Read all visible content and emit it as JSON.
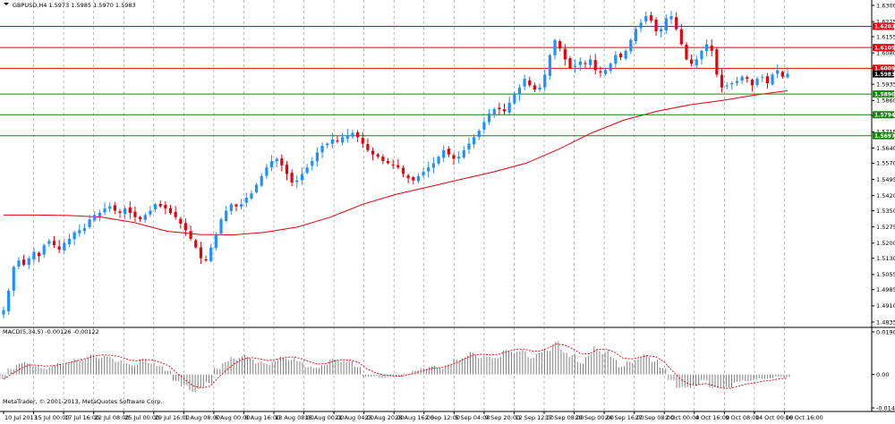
{
  "header": {
    "symbol_line": "GBPUSD,H4  1.5973 1.5985 1.5970 1.5983",
    "macd_line": "MACD(5,34,5) -0.00126 -0.00122",
    "copyright": "MetaTrader, © 2001-2013, MetaQuotes Software Corp."
  },
  "colors": {
    "background": "#ffffff",
    "bull_candle": "#1e90ff",
    "bear_candle": "#e8000b",
    "ma_line": "#e8000b",
    "resistance_line": "#e8000b",
    "support_line": "#138808",
    "macd_bars": "#7f7f7f",
    "macd_signal": "#e8000b",
    "grid": "#9a9a9a"
  },
  "chart_data": [
    {
      "type": "candlestick",
      "symbol": "GBPUSD",
      "timeframe": "H4",
      "ohlc": {
        "open": 1.5973,
        "high": 1.5985,
        "low": 1.597,
        "close": 1.5983
      },
      "current_price_label": "1.5983",
      "ylim": [
        1.4835,
        1.63
      ],
      "y_tick_labels": [
        "1.6300",
        "1.6225",
        "1.6155",
        "1.6080",
        "1.6010",
        "1.5935",
        "1.5860",
        "1.5790",
        "1.5715",
        "1.5640",
        "1.5570",
        "1.5495",
        "1.5420",
        "1.5350",
        "1.5275",
        "1.5200",
        "1.5130",
        "1.5055",
        "1.4985",
        "1.4910",
        "1.4835"
      ],
      "x_tick_labels": [
        "10 Jul 2013",
        "15 Jul 00:00",
        "17 Jul 16:00",
        "22 Jul 08:00",
        "25 Jul 00:00",
        "29 Jul 16:00",
        "1 Aug 08:00",
        "6 Aug 00:00",
        "8 Aug 16:00",
        "13 Aug 08:00",
        "16 Aug 00:00",
        "21 Aug 04:00",
        "23 Aug 20:00",
        "28 Aug 16:00",
        "2 Sep 12:00",
        "5 Sep 04:00",
        "9 Sep 20:00",
        "12 Sep 12:00",
        "17 Sep 08:00",
        "20 Sep 00:00",
        "24 Sep 16:00",
        "27 Sep 08:00",
        "2 Oct 00:00",
        "4 Oct 16:00",
        "9 Oct 08:00",
        "14 Oct 00:00",
        "16 Oct 16:00"
      ],
      "horizontal_levels": [
        {
          "price": 1.6203,
          "label": "1.6203",
          "kind": "resistance"
        },
        {
          "price": 1.6105,
          "label": "1.6105",
          "kind": "resistance"
        },
        {
          "price": 1.6009,
          "label": "1.6009",
          "kind": "resistance"
        },
        {
          "price": 1.589,
          "label": "1.5890",
          "kind": "support"
        },
        {
          "price": 1.5794,
          "label": "1.5794",
          "kind": "support"
        },
        {
          "price": 1.5697,
          "label": "1.5697",
          "kind": "support"
        }
      ],
      "close_path": [
        1.489,
        1.498,
        1.509,
        1.512,
        1.51,
        1.513,
        1.516,
        1.514,
        1.519,
        1.521,
        1.519,
        1.517,
        1.52,
        1.522,
        1.525,
        1.526,
        1.527,
        1.531,
        1.533,
        1.534,
        1.536,
        1.537,
        1.535,
        1.534,
        1.536,
        1.534,
        1.532,
        1.531,
        1.533,
        1.535,
        1.538,
        1.537,
        1.536,
        1.534,
        1.532,
        1.529,
        1.526,
        1.522,
        1.518,
        1.513,
        1.512,
        1.518,
        1.524,
        1.531,
        1.535,
        1.538,
        1.537,
        1.538,
        1.541,
        1.543,
        1.547,
        1.551,
        1.555,
        1.558,
        1.559,
        1.556,
        1.552,
        1.548,
        1.549,
        1.552,
        1.555,
        1.558,
        1.562,
        1.565,
        1.566,
        1.568,
        1.567,
        1.569,
        1.57,
        1.571,
        1.569,
        1.566,
        1.563,
        1.561,
        1.56,
        1.558,
        1.557,
        1.556,
        1.555,
        1.552,
        1.55,
        1.549,
        1.551,
        1.553,
        1.555,
        1.557,
        1.56,
        1.563,
        1.561,
        1.559,
        1.56,
        1.563,
        1.566,
        1.569,
        1.572,
        1.576,
        1.58,
        1.582,
        1.582,
        1.581,
        1.585,
        1.589,
        1.592,
        1.596,
        1.593,
        1.591,
        1.592,
        1.598,
        1.607,
        1.614,
        1.61,
        1.605,
        1.601,
        1.602,
        1.604,
        1.603,
        1.605,
        1.6,
        1.599,
        1.6,
        1.603,
        1.607,
        1.606,
        1.609,
        1.614,
        1.619,
        1.622,
        1.625,
        1.623,
        1.618,
        1.619,
        1.624,
        1.625,
        1.619,
        1.612,
        1.605,
        1.603,
        1.605,
        1.609,
        1.612,
        1.609,
        1.598,
        1.592,
        1.593,
        1.594,
        1.595,
        1.597,
        1.596,
        1.593,
        1.596,
        1.597,
        1.594,
        1.598,
        1.6,
        1.597,
        1.5983
      ],
      "moving_average": [
        1.533,
        1.533,
        1.5328,
        1.532,
        1.5295,
        1.5255,
        1.524,
        1.5238,
        1.525,
        1.5275,
        1.532,
        1.538,
        1.5425,
        1.546,
        1.5495,
        1.553,
        1.557,
        1.5635,
        1.571,
        1.577,
        1.581,
        1.584,
        1.586,
        1.5885,
        1.5905
      ],
      "notes": "Right axis is price; close_path and moving_average are approximate readings from the chart, sampled evenly across the visible time range"
    },
    {
      "type": "bar",
      "indicator": "MACD",
      "params": "5,34,5",
      "main_value": -0.00126,
      "signal_value": -0.00122,
      "ylim": [
        -0.01497,
        0.01909
      ],
      "y_tick_labels": [
        "0.01909",
        "0.00",
        "-0.01497"
      ],
      "histogram": [
        -0.002,
        0.003,
        0.005,
        0.006,
        0.004,
        0.003,
        0.004,
        0.005,
        0.006,
        0.007,
        0.008,
        0.009,
        0.009,
        0.008,
        0.007,
        0.005,
        0.005,
        0.007,
        0.006,
        0.004,
        0.002,
        -0.003,
        -0.006,
        -0.008,
        -0.007,
        -0.004,
        0.003,
        0.006,
        0.008,
        0.009,
        0.008,
        0.006,
        0.005,
        0.007,
        0.008,
        0.008,
        0.006,
        0.004,
        0.003,
        0.005,
        0.007,
        0.007,
        0.006,
        0.004,
        -0.001,
        -0.001,
        -0.0015,
        -0.001,
        -0.001,
        0.0005,
        0.002,
        0.003,
        0.004,
        0.003,
        0.005,
        0.007,
        0.009,
        0.01,
        0.009,
        0.008,
        0.009,
        0.011,
        0.012,
        0.011,
        0.009,
        0.01,
        0.013,
        0.015,
        0.012,
        0.009,
        0.006,
        0.009,
        0.013,
        0.011,
        0.008,
        0.004,
        0.006,
        0.008,
        0.009,
        0.007,
        0.003,
        -0.003,
        -0.006,
        -0.007,
        -0.005,
        -0.003,
        -0.006,
        -0.007,
        -0.006,
        -0.004,
        -0.003,
        -0.003,
        -0.002,
        -0.002,
        -0.001,
        -0.0015
      ]
    }
  ]
}
